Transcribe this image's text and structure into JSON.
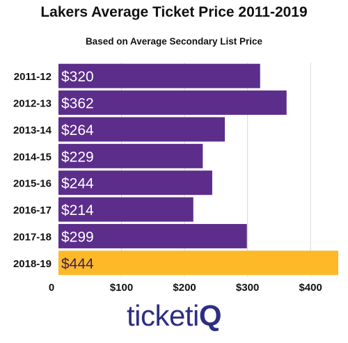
{
  "chart_data": {
    "type": "bar",
    "orientation": "horizontal",
    "title": "Lakers Average Ticket Price 2011-2019",
    "subtitle": "Based on Average Secondary List Price",
    "categories": [
      "2011-12",
      "2012-13",
      "2013-14",
      "2014-15",
      "2015-16",
      "2016-17",
      "2017-18",
      "2018-19"
    ],
    "values": [
      320,
      362,
      264,
      229,
      244,
      214,
      299,
      444
    ],
    "data_labels": [
      "$320",
      "$362",
      "$264",
      "$229",
      "$244",
      "$214",
      "$299",
      "$444"
    ],
    "x_ticks": [
      "0",
      "$100",
      "$200",
      "$300",
      "$400"
    ],
    "x_tick_values": [
      0,
      100,
      200,
      300,
      400
    ],
    "xlim": [
      0,
      444
    ],
    "grid": true,
    "colors": {
      "default": "#5c2d8a",
      "highlight": "#fdb927"
    },
    "highlight_index": 7
  },
  "branding": {
    "logo_text": "ticketiQ",
    "logo_part1": "ticketi",
    "logo_part2": "Q"
  }
}
